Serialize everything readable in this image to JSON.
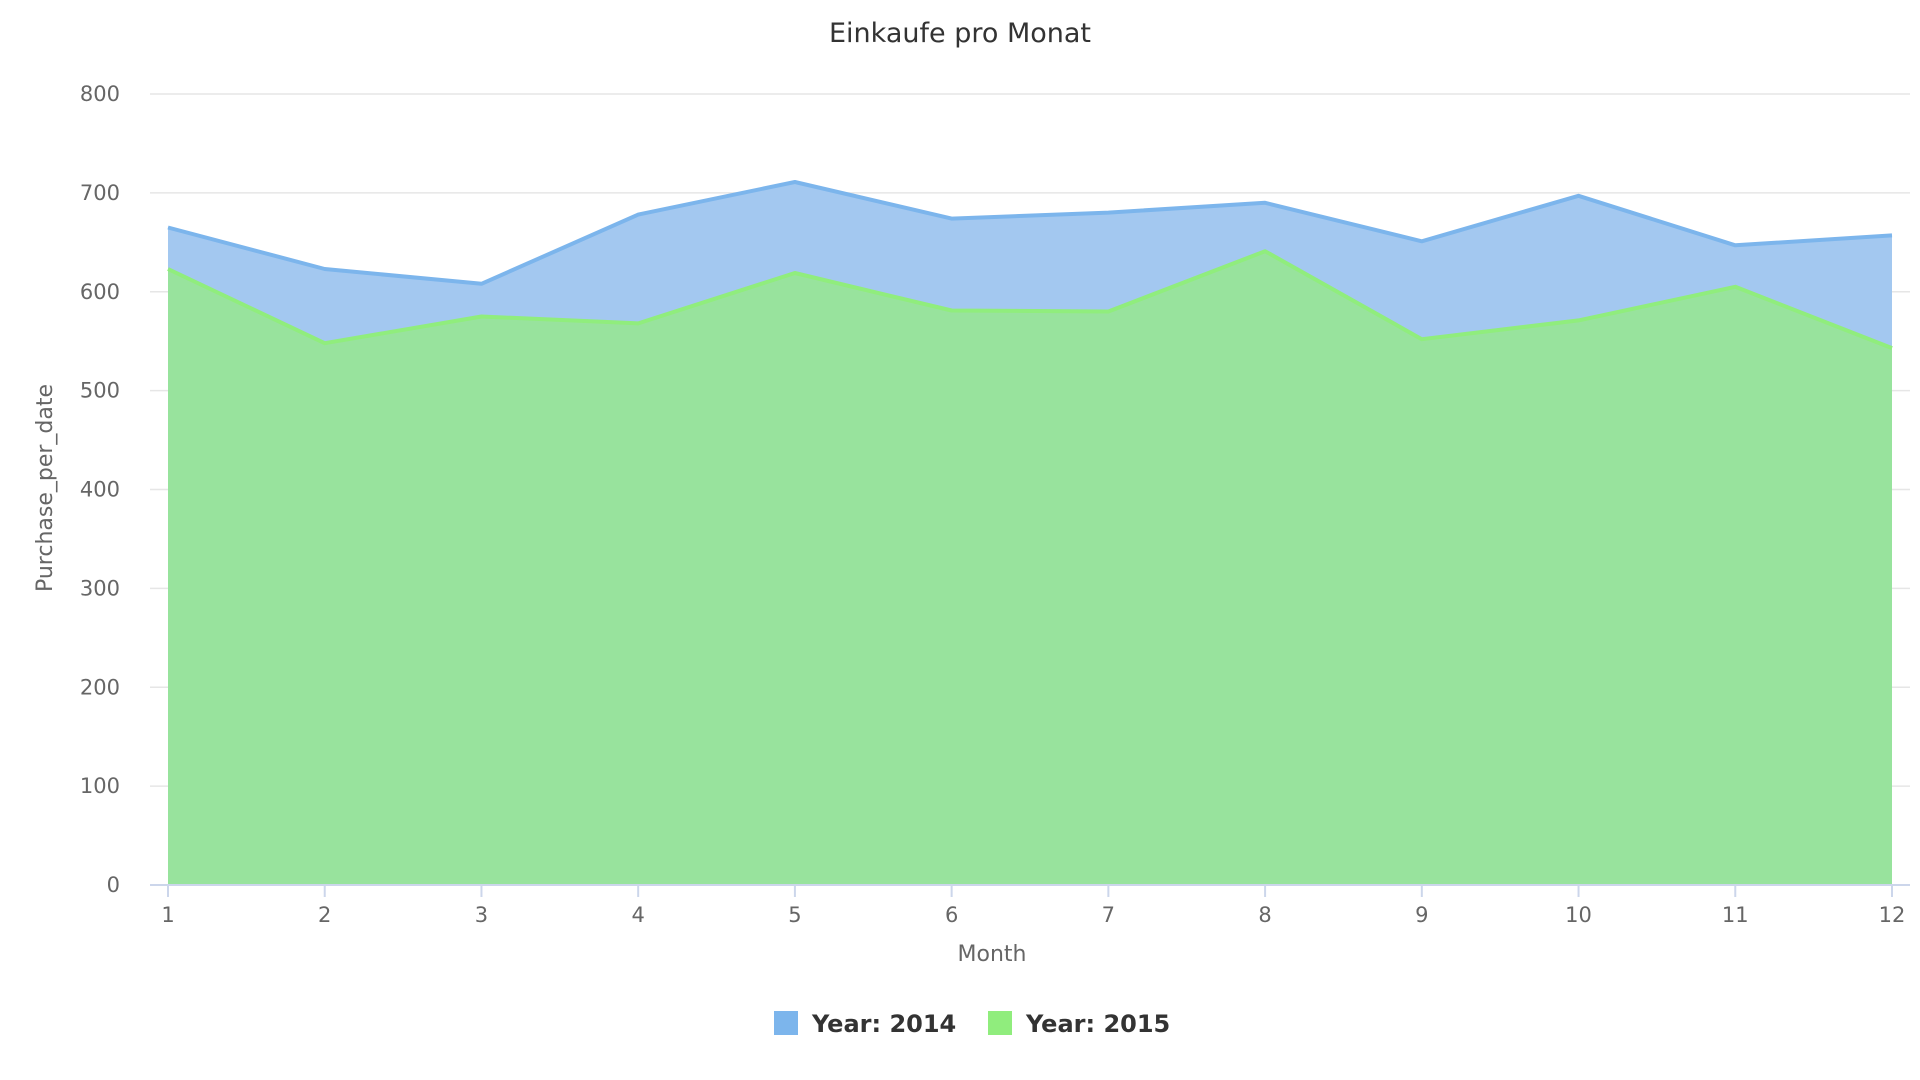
{
  "colors": {
    "series_2014_fill": "#a3c8f0",
    "series_2014_line": "#7cb5ec",
    "series_2015_fill": "#98e39d",
    "series_2015_line": "#90ed7d",
    "grid": "#e6e6e6",
    "axis": "#ccd6eb"
  },
  "chart_data": {
    "type": "area",
    "title": "Einkaufe pro Monat",
    "xlabel": "Month",
    "ylabel": "Purchase_per_date",
    "x": [
      "1",
      "2",
      "3",
      "4",
      "5",
      "6",
      "7",
      "8",
      "9",
      "10",
      "11",
      "12"
    ],
    "yticks": [
      "0",
      "100",
      "200",
      "300",
      "400",
      "500",
      "600",
      "700",
      "800"
    ],
    "ylim": [
      0,
      800
    ],
    "grid": true,
    "legend_position": "bottom-center",
    "series": [
      {
        "name": "Year: 2014",
        "values": [
          665,
          623,
          608,
          678,
          711,
          674,
          680,
          690,
          651,
          697,
          647,
          657
        ]
      },
      {
        "name": "Year: 2015",
        "values": [
          623,
          548,
          575,
          568,
          619,
          581,
          580,
          641,
          552,
          571,
          605,
          543
        ]
      }
    ]
  }
}
